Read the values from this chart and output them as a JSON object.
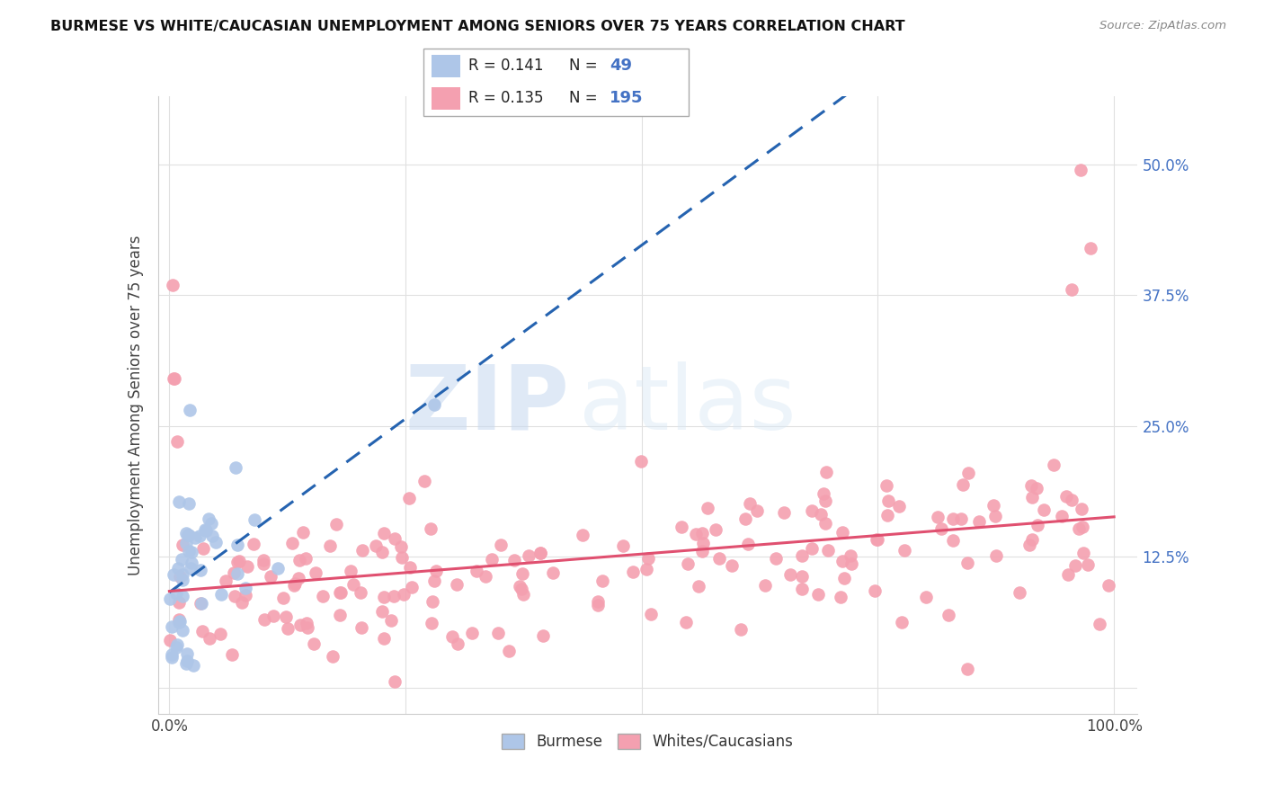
{
  "title": "BURMESE VS WHITE/CAUCASIAN UNEMPLOYMENT AMONG SENIORS OVER 75 YEARS CORRELATION CHART",
  "source": "Source: ZipAtlas.com",
  "ylabel": "Unemployment Among Seniors over 75 years",
  "burmese_color": "#aec6e8",
  "caucasian_color": "#f4a0b0",
  "burmese_line_color": "#2563b0",
  "caucasian_line_color": "#e05070",
  "label_color": "#4472c4",
  "burmese_R": 0.141,
  "burmese_N": 49,
  "caucasian_R": 0.135,
  "caucasian_N": 195,
  "watermark_zip": "ZIP",
  "watermark_atlas": "atlas",
  "legend_burmese": "Burmese",
  "legend_caucasian": "Whites/Caucasians",
  "burmese_seed": 7,
  "caucasian_seed": 13
}
